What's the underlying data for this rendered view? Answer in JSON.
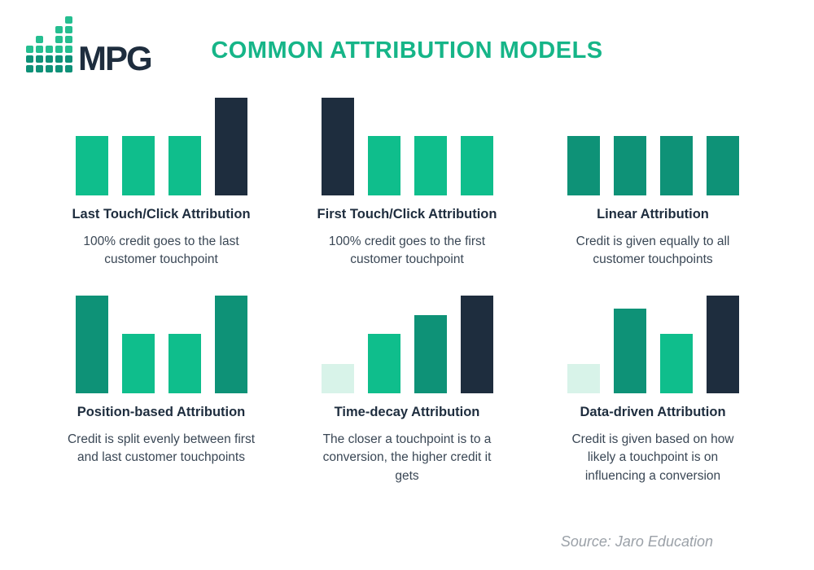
{
  "page": {
    "background": "#ffffff"
  },
  "header": {
    "logo": {
      "text": "MPG",
      "text_color": "#1E2D3E",
      "icon": "equalizer-bars-icon",
      "icon_columns": [
        3,
        4,
        3,
        5,
        6
      ],
      "icon_color_top": "#25BE90",
      "icon_color_bottom": "#0F9178"
    },
    "title": "COMMON ATTRIBUTION MODELS",
    "title_color": "#16B588"
  },
  "colors": {
    "green": "#0FBE8C",
    "teal": "#0E9277",
    "navy": "#1E2D3E",
    "mint": "#D8F3E9",
    "heading": "#1E2D3E",
    "body_text": "#3A4755",
    "source_text": "#9BA1A8"
  },
  "models": [
    {
      "name": "Last Touch/Click Attribution",
      "description": "100% credit goes to the last customer touchpoint"
    },
    {
      "name": "First Touch/Click Attribution",
      "description": "100% credit goes to the first customer touchpoint"
    },
    {
      "name": "Linear Attribution",
      "description": "Credit is given equally to all customer touchpoints"
    },
    {
      "name": "Position-based Attribution",
      "description": "Credit is split evenly between first and last customer touchpoints"
    },
    {
      "name": "Time-decay Attribution",
      "description": "The closer a touchpoint is to a conversion, the higher credit it gets"
    },
    {
      "name": "Data-driven Attribution",
      "description": "Credit is given based on how likely a touchpoint is on influencing a conversion"
    }
  ],
  "chart_data": [
    {
      "type": "bar",
      "title": "Last Touch/Click Attribution",
      "values": [
        61,
        61,
        61,
        100
      ],
      "bar_colors": [
        "green",
        "green",
        "green",
        "navy"
      ],
      "ylim": [
        0,
        100
      ],
      "axes": "none"
    },
    {
      "type": "bar",
      "title": "First Touch/Click Attribution",
      "values": [
        100,
        61,
        61,
        61
      ],
      "bar_colors": [
        "navy",
        "green",
        "green",
        "green"
      ],
      "ylim": [
        0,
        100
      ],
      "axes": "none"
    },
    {
      "type": "bar",
      "title": "Linear Attribution",
      "values": [
        61,
        61,
        61,
        61
      ],
      "bar_colors": [
        "teal",
        "teal",
        "teal",
        "teal"
      ],
      "ylim": [
        0,
        100
      ],
      "axes": "none"
    },
    {
      "type": "bar",
      "title": "Position-based Attribution",
      "values": [
        100,
        61,
        61,
        100
      ],
      "bar_colors": [
        "teal",
        "green",
        "green",
        "teal"
      ],
      "ylim": [
        0,
        100
      ],
      "axes": "none"
    },
    {
      "type": "bar",
      "title": "Time-decay Attribution",
      "values": [
        30,
        61,
        80,
        100
      ],
      "bar_colors": [
        "mint",
        "green",
        "teal",
        "navy"
      ],
      "ylim": [
        0,
        100
      ],
      "axes": "none"
    },
    {
      "type": "bar",
      "title": "Data-driven Attribution",
      "values": [
        30,
        87,
        61,
        100
      ],
      "bar_colors": [
        "mint",
        "teal",
        "green",
        "navy"
      ],
      "ylim": [
        0,
        100
      ],
      "axes": "none"
    }
  ],
  "footer": {
    "source": "Source: Jaro Education"
  }
}
